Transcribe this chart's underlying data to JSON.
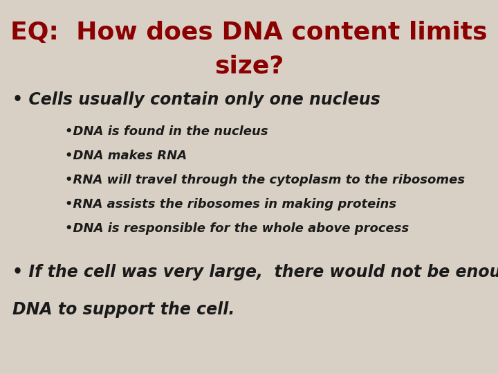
{
  "background_color": "#d8d0c5",
  "title_line1": "EQ:  How does DNA content limits",
  "title_line2": "size?",
  "title_color": "#8b0000",
  "title_fontsize": 26,
  "bullet1": "• Cells usually contain only one nucleus",
  "bullet1_color": "#1a1a1a",
  "bullet1_fontsize": 17,
  "sub_bullets": [
    "•DNA is found in the nucleus",
    "•DNA makes RNA",
    "•RNA will travel through the cytoplasm to the ribosomes",
    "•RNA assists the ribosomes in making proteins",
    "•DNA is responsible for the whole above process"
  ],
  "sub_bullet_color": "#1a1a1a",
  "sub_bullet_fontsize": 13,
  "bullet2_line1": "• If the cell was very large,  there would not be enough",
  "bullet2_line2": "DNA to support the cell.",
  "bullet2_color": "#1a1a1a",
  "bullet2_fontsize": 17
}
